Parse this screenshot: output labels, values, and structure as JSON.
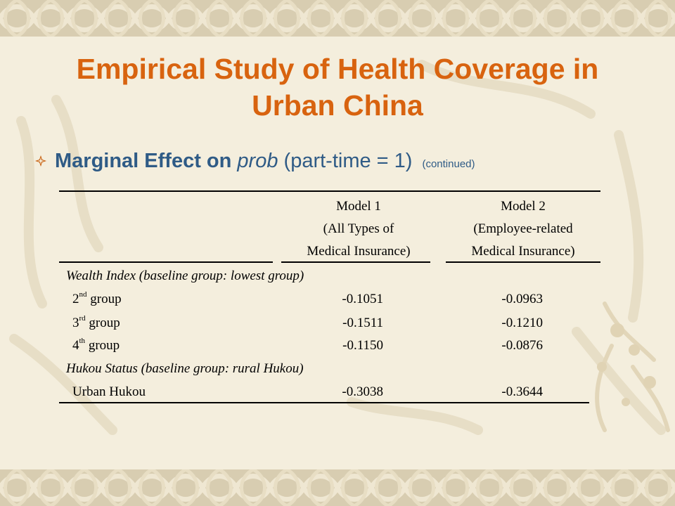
{
  "title": {
    "line1": "Empirical Study of Health Coverage in",
    "line2": "Urban China"
  },
  "bullet": {
    "strong": "Marginal Effect on",
    "italic": "prob",
    "rest": "(part-time = 1)",
    "note": "(continued)"
  },
  "table": {
    "model1": [
      "Model 1",
      "(All Types of",
      "Medical Insurance)"
    ],
    "model2": [
      "Model 2",
      "(Employee-related",
      "Medical Insurance)"
    ],
    "wealth_header": "Wealth Index (baseline group: lowest group)",
    "wealth_rows": [
      {
        "num": "2",
        "sup": "nd",
        "label": " group",
        "m1": "-0.1051",
        "m2": "-0.0963"
      },
      {
        "num": "3",
        "sup": "rd",
        "label": " group",
        "m1": "-0.1511",
        "m2": "-0.1210"
      },
      {
        "num": "4",
        "sup": "th",
        "label": " group",
        "m1": "-0.1150",
        "m2": "-0.0876"
      }
    ],
    "hukou_header": "Hukou Status (baseline group: rural Hukou)",
    "hukou_row": {
      "label": "Urban Hukou",
      "m1": "-0.3038",
      "m2": "-0.3644"
    }
  },
  "colors": {
    "title": "#d8630f",
    "bullet": "#2f5b86",
    "background": "#f4eedd",
    "border": "#d8cdb1"
  }
}
